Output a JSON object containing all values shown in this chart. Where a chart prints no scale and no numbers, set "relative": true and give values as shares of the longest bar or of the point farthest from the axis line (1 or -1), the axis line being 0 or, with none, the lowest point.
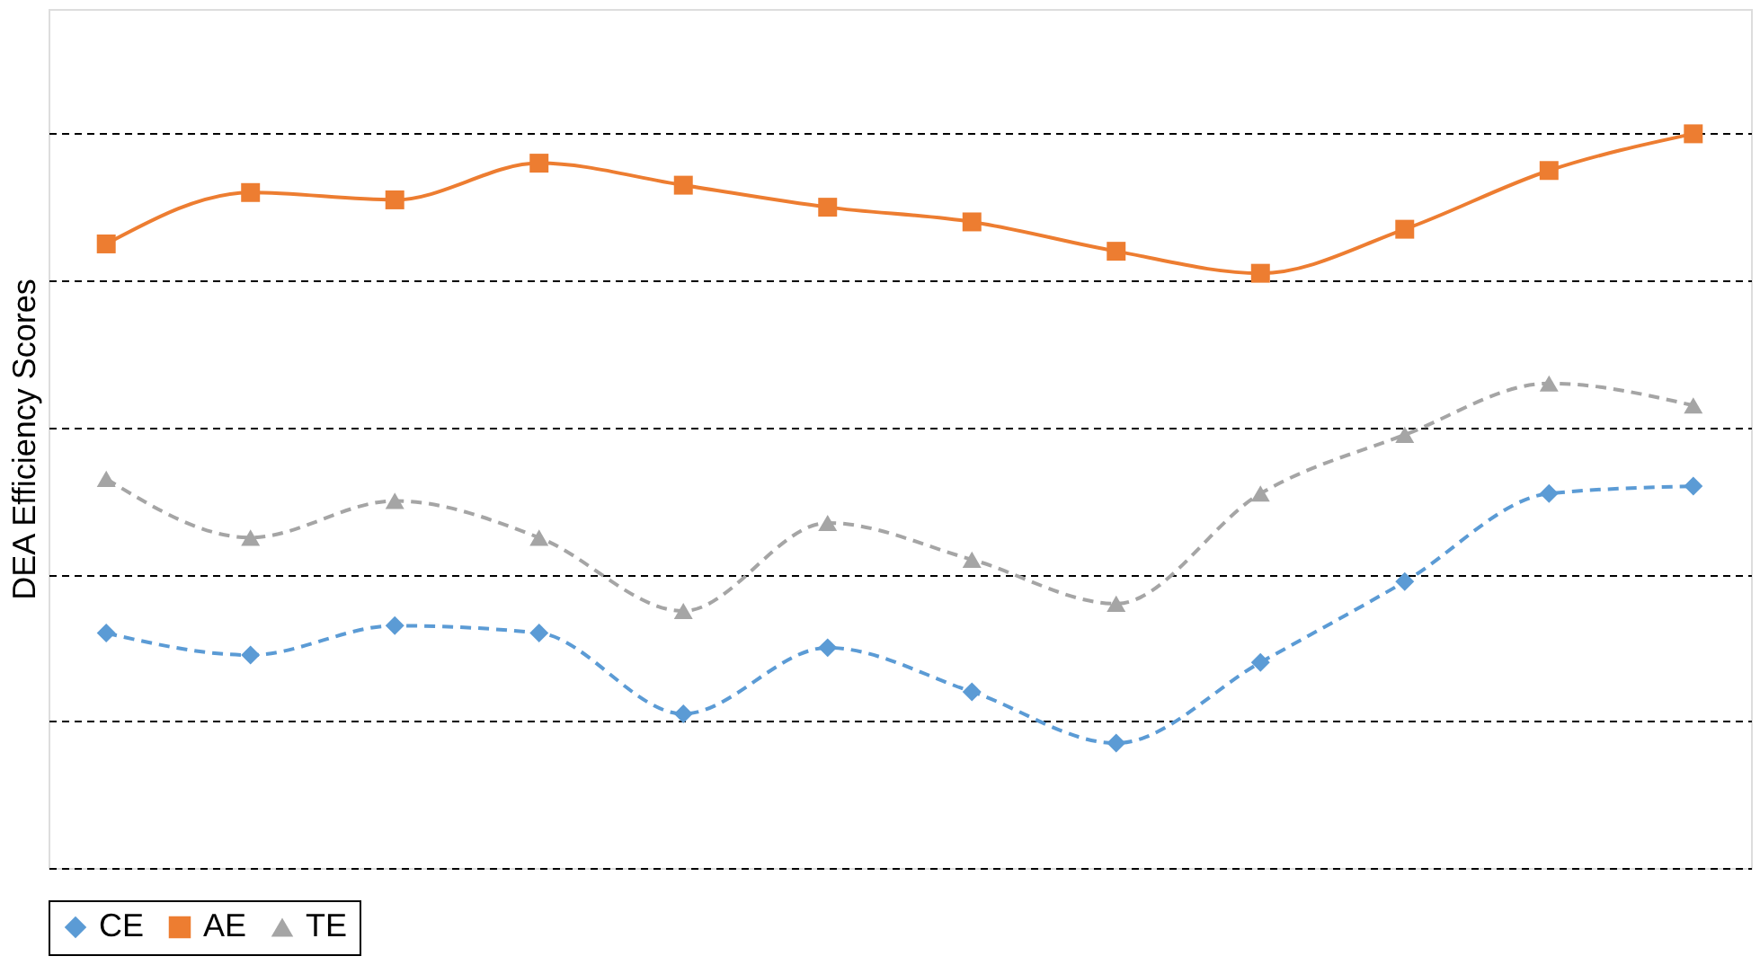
{
  "chart_data": {
    "type": "line",
    "ylabel": "DEA Efficiency Scores",
    "relative": true,
    "grid": "y",
    "legend": "bottom",
    "categories": [
      null,
      null,
      null,
      null,
      null,
      null,
      null,
      null,
      null,
      null,
      null,
      null
    ],
    "series": [
      {
        "name": "CE",
        "color": "#5b9bd5",
        "marker": "diamond",
        "line_style": "dashed",
        "values": [
          0.32,
          0.29,
          0.33,
          0.32,
          0.21,
          0.3,
          0.24,
          0.17,
          0.28,
          0.39,
          0.51,
          0.52
        ]
      },
      {
        "name": "AE",
        "color": "#ed7d31",
        "marker": "square",
        "line_style": "solid",
        "values": [
          0.85,
          0.92,
          0.91,
          0.96,
          0.93,
          0.9,
          0.88,
          0.84,
          0.81,
          0.87,
          0.95,
          1.0
        ]
      },
      {
        "name": "TE",
        "color": "#a5a5a5",
        "marker": "triangle",
        "line_style": "dashed",
        "values": [
          0.53,
          0.45,
          0.5,
          0.45,
          0.35,
          0.47,
          0.42,
          0.36,
          0.51,
          0.59,
          0.66,
          0.63
        ]
      }
    ]
  }
}
